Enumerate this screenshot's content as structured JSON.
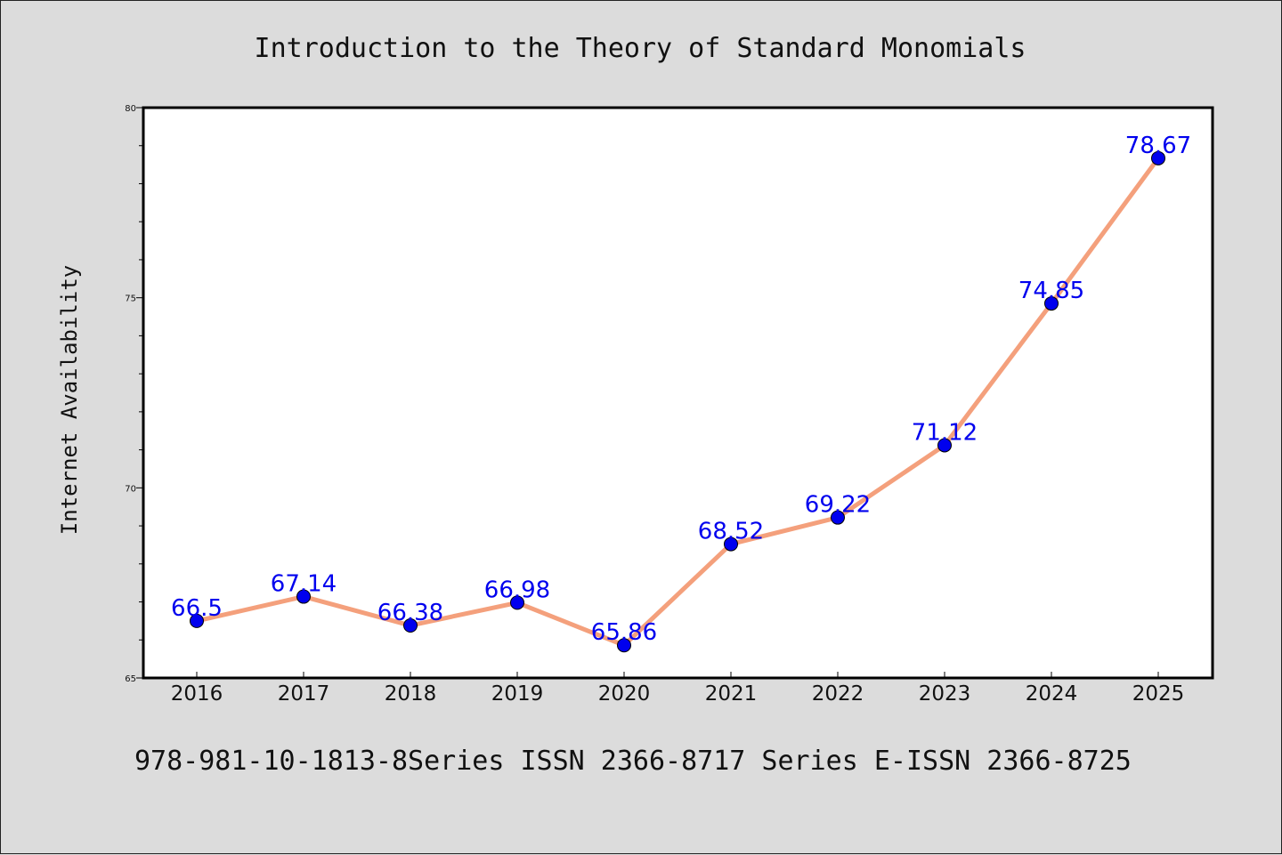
{
  "footer_text": "978-981-10-1813-8Series ISSN 2366-8717 Series E-ISSN 2366-8725",
  "chart_data": {
    "type": "line",
    "title": "Introduction to the Theory of Standard Monomials",
    "xlabel": "",
    "ylabel": "Internet Availability",
    "categories": [
      "2016",
      "2017",
      "2018",
      "2019",
      "2020",
      "2021",
      "2022",
      "2023",
      "2024",
      "2025"
    ],
    "series": [
      {
        "values": [
          66.5,
          67.14,
          66.38,
          66.98,
          65.86,
          68.52,
          69.22,
          71.12,
          74.85,
          78.67
        ],
        "data_labels": [
          "66.5",
          "67.14",
          "66.38",
          "66.98",
          "65.86",
          "68.52",
          "69.22",
          "71.12",
          "74.85",
          "78.67"
        ],
        "line_color": "#f4a07c",
        "marker_color": "#0000ee"
      }
    ],
    "ylim": [
      65,
      80
    ],
    "yticks": [
      65,
      70,
      75,
      80
    ],
    "grid": false,
    "label_color": "#0000ee"
  }
}
